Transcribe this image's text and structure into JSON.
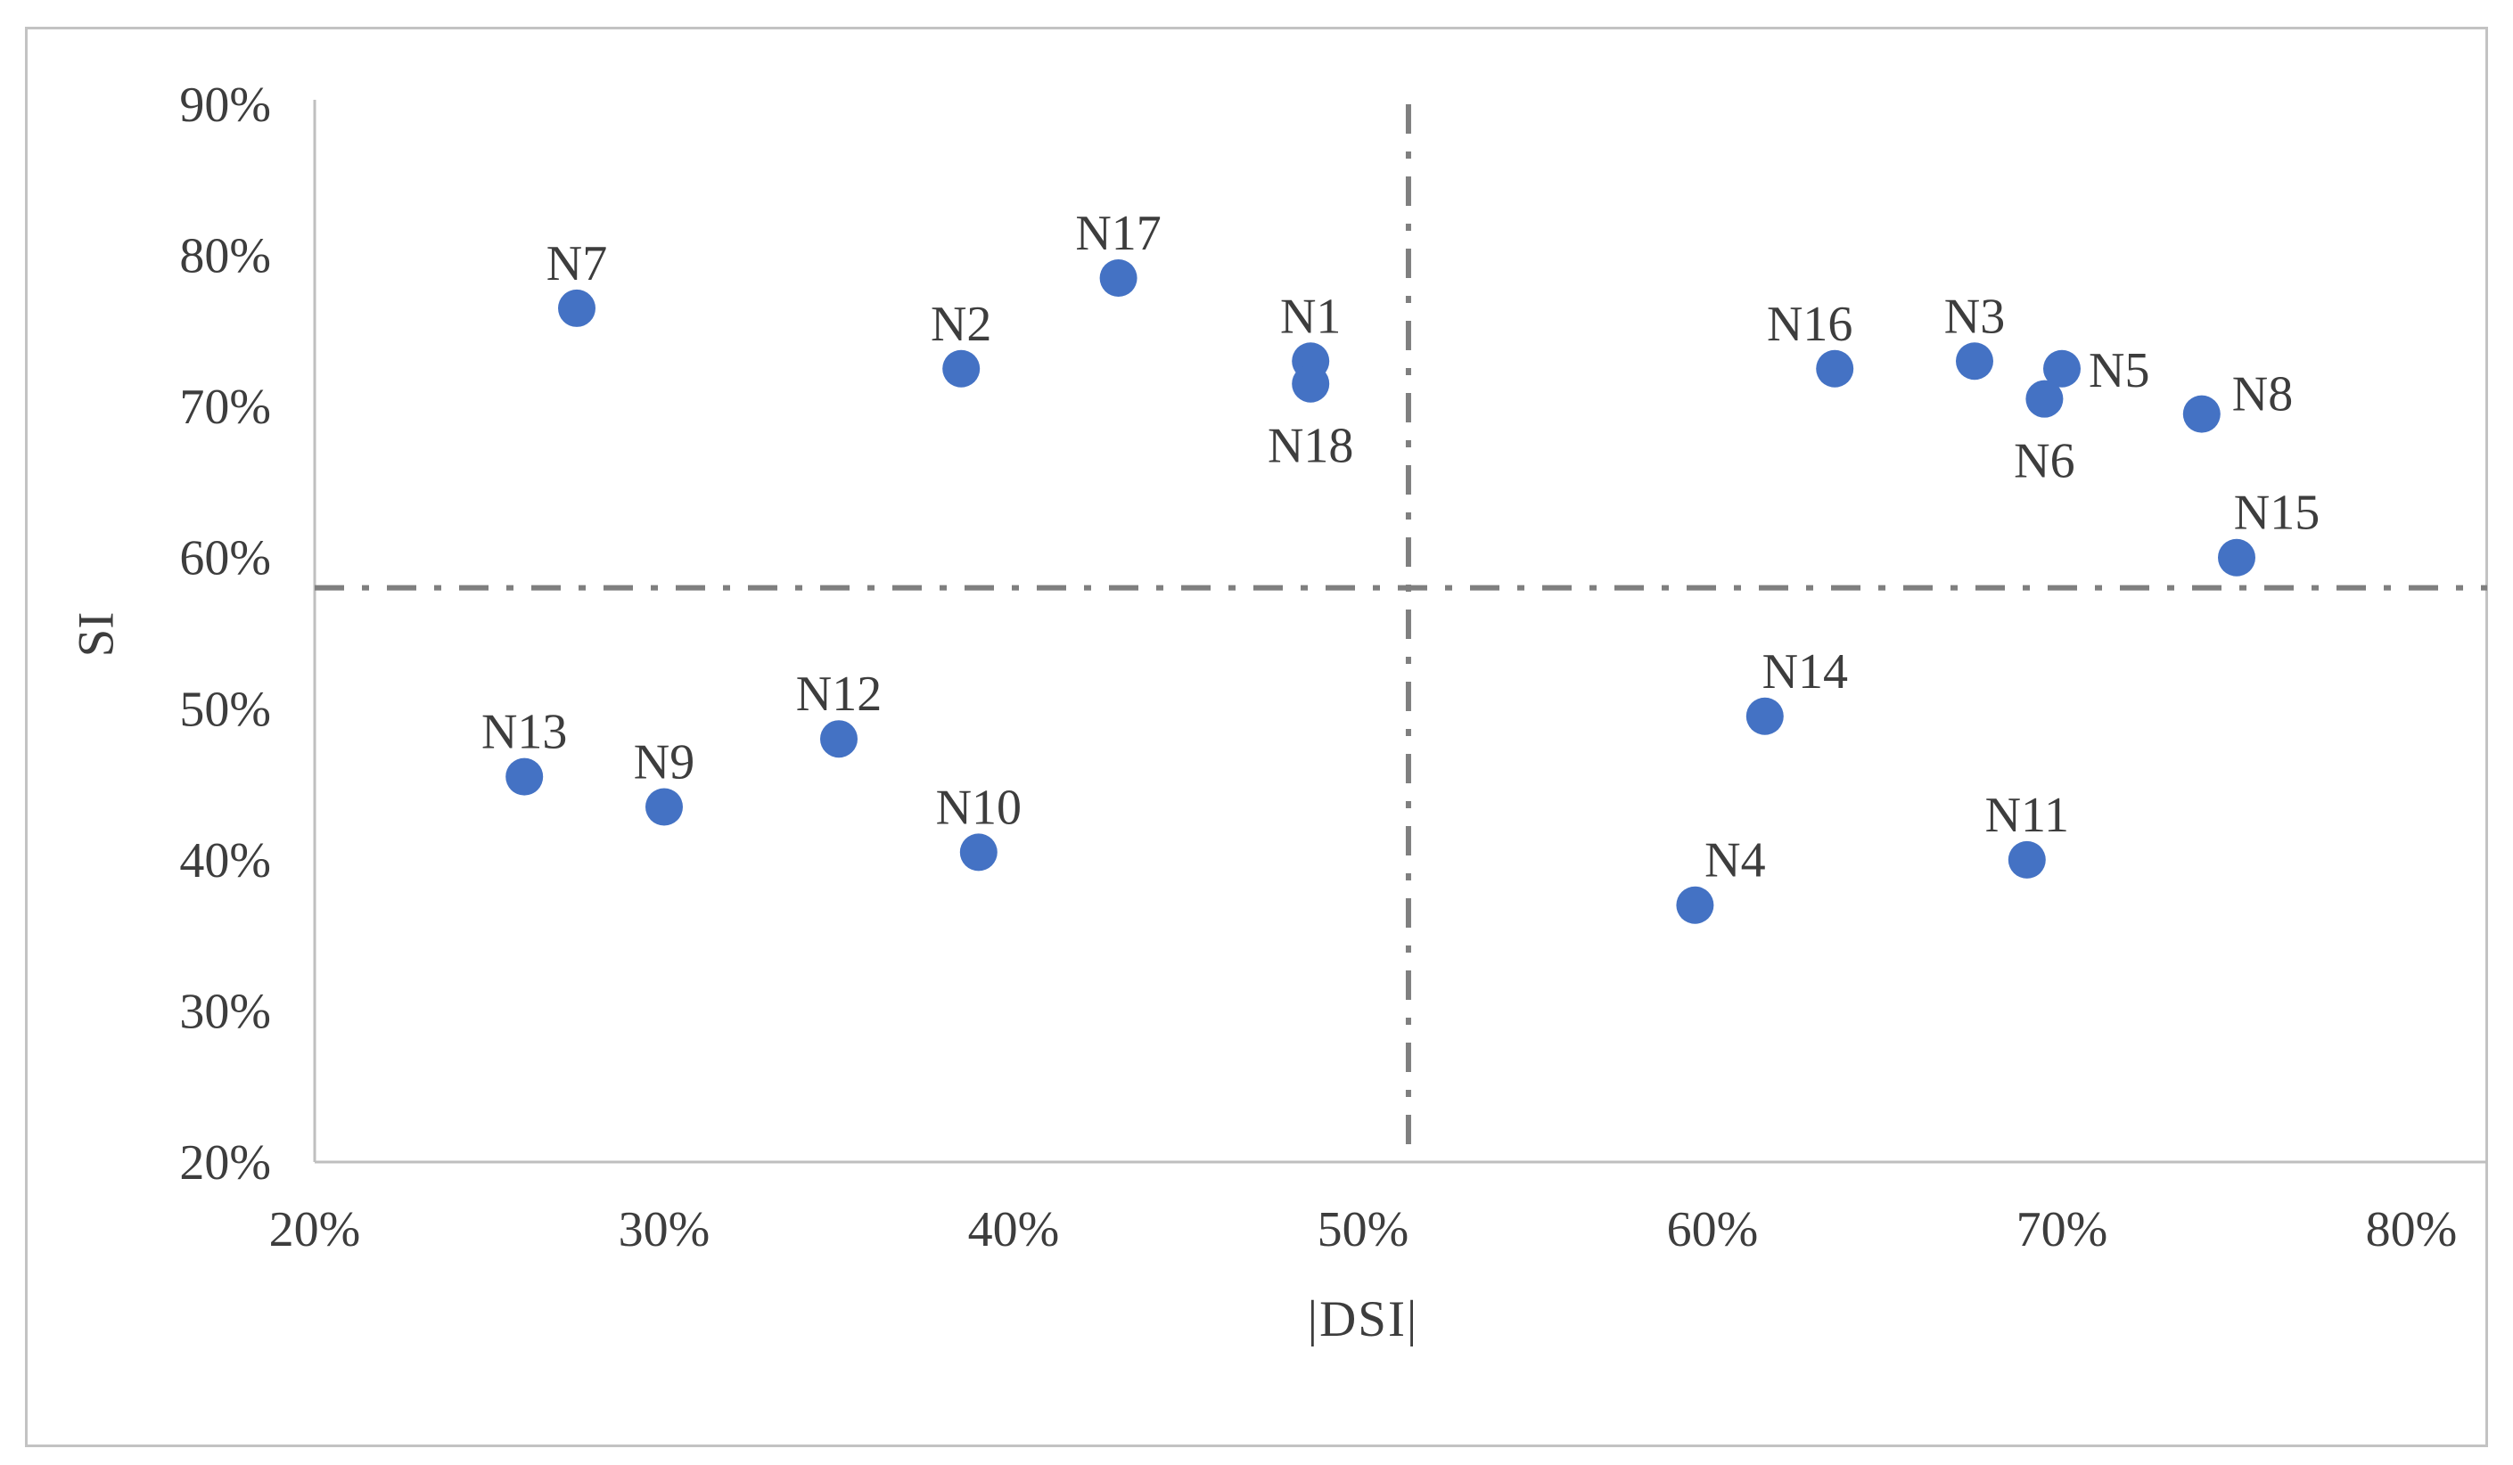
{
  "figure": {
    "background_color": "#ffffff",
    "border_color": "#c3c3c3"
  },
  "chart_data": {
    "type": "scatter",
    "title": "",
    "xlabel": "|DSI|",
    "ylabel": "SI",
    "units": "percent",
    "xlim": [
      20,
      82
    ],
    "ylim": [
      20,
      90
    ],
    "grid": false,
    "legend": false,
    "marker_color": "#4472C4",
    "text_color": "#3d3d3d",
    "axis_line_color": "#bfbfbf",
    "x_ticks": [
      {
        "value": 20,
        "label": "20%"
      },
      {
        "value": 30,
        "label": "30%"
      },
      {
        "value": 40,
        "label": "40%"
      },
      {
        "value": 50,
        "label": "50%"
      },
      {
        "value": 60,
        "label": "60%"
      },
      {
        "value": 70,
        "label": "70%"
      },
      {
        "value": 80,
        "label": "80%"
      }
    ],
    "y_ticks": [
      {
        "value": 20,
        "label": "20%"
      },
      {
        "value": 30,
        "label": "30%"
      },
      {
        "value": 40,
        "label": "40%"
      },
      {
        "value": 50,
        "label": "50%"
      },
      {
        "value": 60,
        "label": "60%"
      },
      {
        "value": 70,
        "label": "70%"
      },
      {
        "value": 80,
        "label": "80%"
      },
      {
        "value": 90,
        "label": "90%"
      }
    ],
    "reference_lines": {
      "vertical_x": 51.3,
      "horizontal_y": 58,
      "color": "#7f7f7f",
      "style": "dash-dot"
    },
    "points": [
      {
        "label": "N1",
        "x": 48.5,
        "y": 73.0,
        "label_pos": "above"
      },
      {
        "label": "N2",
        "x": 38.5,
        "y": 72.5,
        "label_pos": "above"
      },
      {
        "label": "N3",
        "x": 67.5,
        "y": 73.0,
        "label_pos": "above"
      },
      {
        "label": "N4",
        "x": 59.5,
        "y": 37.0,
        "label_pos": "above-right"
      },
      {
        "label": "N5",
        "x": 70.0,
        "y": 72.5,
        "label_pos": "right"
      },
      {
        "label": "N6",
        "x": 69.5,
        "y": 70.5,
        "label_pos": "below"
      },
      {
        "label": "N7",
        "x": 27.5,
        "y": 76.5,
        "label_pos": "above"
      },
      {
        "label": "N8",
        "x": 74.0,
        "y": 69.5,
        "label_pos": "right-above"
      },
      {
        "label": "N9",
        "x": 30.0,
        "y": 43.5,
        "label_pos": "above"
      },
      {
        "label": "N10",
        "x": 39.0,
        "y": 40.5,
        "label_pos": "above"
      },
      {
        "label": "N11",
        "x": 69.0,
        "y": 40.0,
        "label_pos": "above"
      },
      {
        "label": "N12",
        "x": 35.0,
        "y": 48.0,
        "label_pos": "above"
      },
      {
        "label": "N13",
        "x": 26.0,
        "y": 45.5,
        "label_pos": "above"
      },
      {
        "label": "N14",
        "x": 61.5,
        "y": 49.5,
        "label_pos": "above-right"
      },
      {
        "label": "N15",
        "x": 75.0,
        "y": 60.0,
        "label_pos": "above-right"
      },
      {
        "label": "N16",
        "x": 63.5,
        "y": 72.5,
        "label_pos": "above-left"
      },
      {
        "label": "N17",
        "x": 43.0,
        "y": 78.5,
        "label_pos": "above"
      },
      {
        "label": "N18",
        "x": 48.5,
        "y": 71.5,
        "label_pos": "below"
      }
    ]
  }
}
